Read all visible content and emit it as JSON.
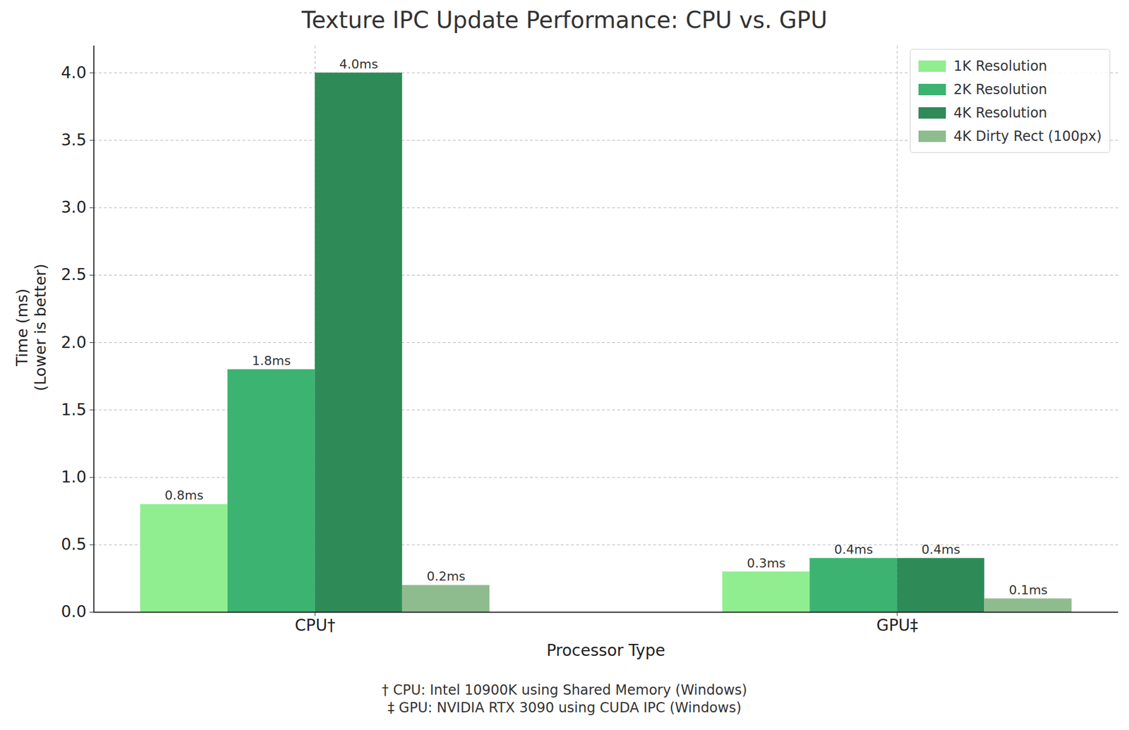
{
  "chart_data": {
    "type": "bar",
    "title": "Texture IPC Update Performance: CPU vs. GPU",
    "x_label": "Processor Type",
    "y_label": "Time (ms)\n(Lower is better)",
    "categories": [
      "CPU†",
      "GPU‡"
    ],
    "series": [
      {
        "name": "1K Resolution",
        "color": "#90ee90",
        "values": [
          0.8,
          0.3
        ],
        "value_labels": [
          "0.8ms",
          "0.3ms"
        ]
      },
      {
        "name": "2K Resolution",
        "color": "#3cb371",
        "values": [
          1.8,
          0.4
        ],
        "value_labels": [
          "1.8ms",
          "0.4ms"
        ]
      },
      {
        "name": "4K Resolution",
        "color": "#2e8b57",
        "values": [
          4.0,
          0.4
        ],
        "value_labels": [
          "4.0ms",
          "0.4ms"
        ]
      },
      {
        "name": "4K Dirty Rect (100px)",
        "color": "#8fbc8f",
        "values": [
          0.2,
          0.1
        ],
        "value_labels": [
          "0.2ms",
          "0.1ms"
        ]
      }
    ],
    "ylim": [
      0,
      4.2
    ],
    "yticks": [
      {
        "value": 0,
        "label": "0.0"
      },
      0.5,
      {
        "value": 1,
        "label": "1.0"
      },
      1.5,
      {
        "value": 2,
        "label": "2.0"
      },
      2.5,
      {
        "value": 3,
        "label": "3.0"
      },
      3.5,
      {
        "value": 4,
        "label": "4.0"
      }
    ],
    "grid": true,
    "legend": "upper right",
    "data_labels": true,
    "footnotes": [
      "† CPU: Intel 10900K using Shared Memory (Windows)",
      "‡ GPU: NVIDIA RTX 3090 using CUDA IPC (Windows)"
    ]
  }
}
